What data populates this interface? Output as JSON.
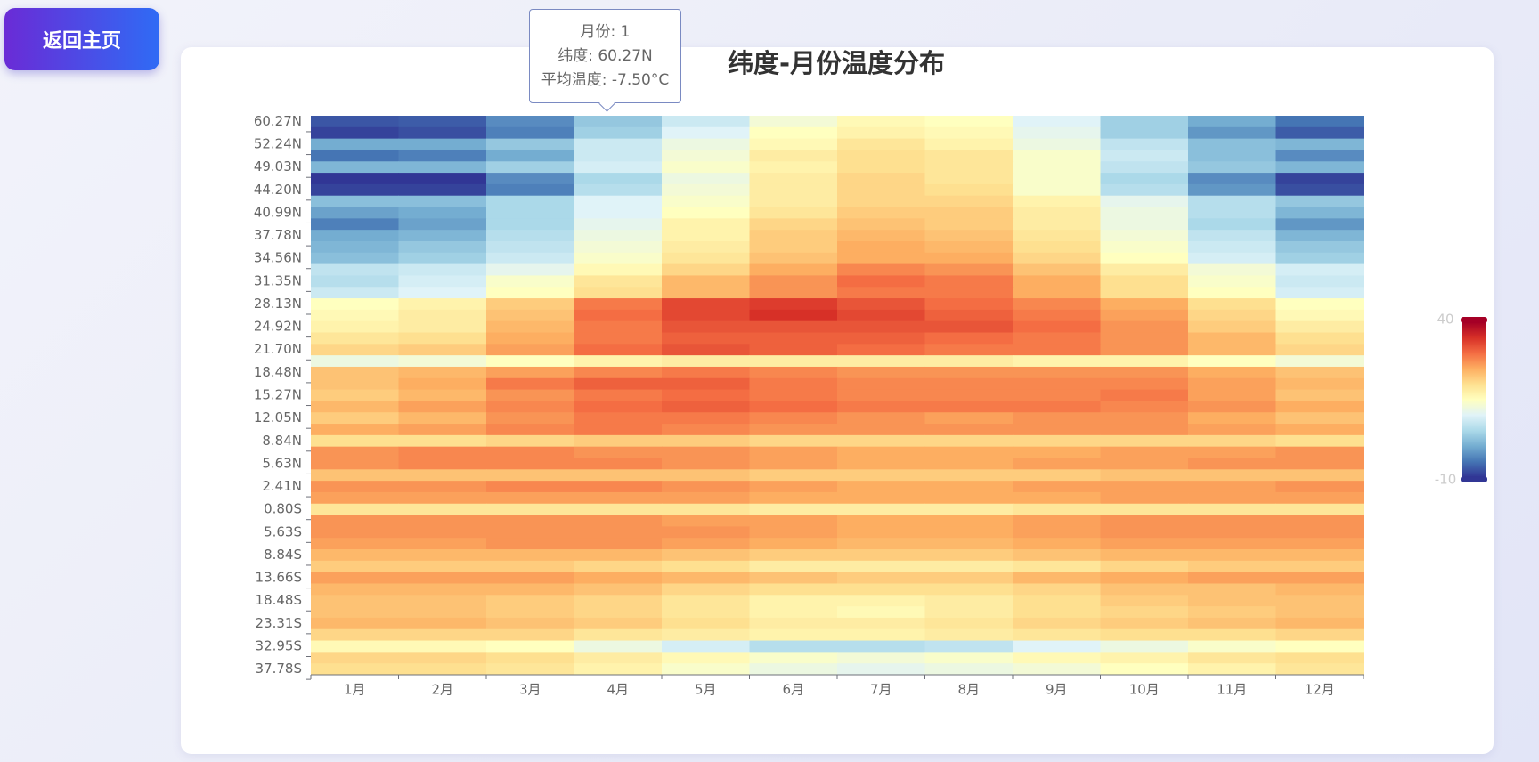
{
  "button": "返回主页",
  "chart_data": {
    "type": "heatmap",
    "title": "纬度-月份温度分布",
    "categories": [
      "1月",
      "2月",
      "3月",
      "4月",
      "5月",
      "6月",
      "7月",
      "8月",
      "9月",
      "10月",
      "11月",
      "12月"
    ],
    "y_categories": [
      "60.27N",
      null,
      "52.24N",
      null,
      "49.03N",
      null,
      "44.20N",
      null,
      "40.99N",
      null,
      "37.78N",
      null,
      "34.56N",
      null,
      "31.35N",
      null,
      "28.13N",
      null,
      "24.92N",
      null,
      "21.70N",
      null,
      "18.48N",
      null,
      "15.27N",
      null,
      "12.05N",
      null,
      "8.84N",
      null,
      "5.63N",
      null,
      "2.41N",
      null,
      "0.80S",
      null,
      "5.63S",
      null,
      "8.84S",
      null,
      "13.66S",
      null,
      "18.48S",
      null,
      "23.31S",
      null,
      "32.95S",
      null,
      "37.78S"
    ],
    "values": [
      [
        -7.5,
        -7,
        -3,
        3,
        8,
        13,
        16,
        15,
        10,
        4,
        0,
        -5
      ],
      [
        -9,
        -8,
        -4,
        4,
        10,
        15,
        17,
        16,
        11,
        4,
        -2,
        -7
      ],
      [
        0,
        0,
        3,
        8,
        12,
        16,
        19,
        17,
        12,
        7,
        2,
        1
      ],
      [
        -5,
        -4,
        0,
        8,
        13,
        18,
        20,
        19,
        14,
        8,
        2,
        -3
      ],
      [
        1,
        1,
        4,
        9,
        14,
        17,
        20,
        19,
        14,
        7,
        3,
        1
      ],
      [
        -10,
        -10,
        -3,
        5,
        12,
        18,
        21,
        19,
        14,
        5,
        -3,
        -9
      ],
      [
        -9,
        -9,
        -4,
        6,
        13,
        18,
        21,
        20,
        14,
        6,
        -2,
        -8
      ],
      [
        2,
        2,
        5,
        10,
        14,
        18,
        21,
        21,
        17,
        11,
        6,
        3
      ],
      [
        -1,
        0,
        5,
        10,
        15,
        19,
        22,
        22,
        18,
        12,
        6,
        1
      ],
      [
        -4,
        -1,
        5,
        11,
        17,
        21,
        23,
        22,
        18,
        12,
        5,
        -2
      ],
      [
        0,
        1,
        6,
        12,
        17,
        22,
        24,
        23,
        19,
        13,
        7,
        1
      ],
      [
        1,
        3,
        7,
        13,
        18,
        22,
        25,
        24,
        20,
        14,
        8,
        3
      ],
      [
        2,
        4,
        8,
        14,
        19,
        23,
        25,
        25,
        21,
        15,
        9,
        4
      ],
      [
        7,
        8,
        11,
        16,
        21,
        25,
        28,
        27,
        23,
        18,
        13,
        9
      ],
      [
        6,
        9,
        14,
        19,
        24,
        27,
        30,
        29,
        25,
        20,
        14,
        8
      ],
      [
        8,
        10,
        15,
        20,
        24,
        27,
        29,
        29,
        25,
        20,
        15,
        9
      ],
      [
        15,
        17,
        22,
        29,
        33,
        34,
        32,
        30,
        28,
        25,
        20,
        15
      ],
      [
        16,
        18,
        23,
        30,
        33,
        35,
        33,
        31,
        29,
        26,
        21,
        16
      ],
      [
        17,
        18,
        24,
        29,
        32,
        32,
        32,
        32,
        30,
        27,
        22,
        18
      ],
      [
        19,
        20,
        25,
        29,
        31,
        31,
        31,
        30,
        29,
        27,
        24,
        20
      ],
      [
        21,
        22,
        26,
        30,
        32,
        31,
        30,
        29,
        29,
        27,
        24,
        21
      ],
      [
        12,
        13,
        15,
        17,
        18,
        18,
        18,
        18,
        17,
        17,
        15,
        13
      ],
      [
        23,
        24,
        26,
        28,
        29,
        28,
        27,
        27,
        27,
        27,
        25,
        23
      ],
      [
        23,
        25,
        29,
        31,
        31,
        29,
        28,
        28,
        28,
        28,
        26,
        24
      ],
      [
        22,
        24,
        27,
        29,
        30,
        29,
        28,
        28,
        28,
        29,
        26,
        23
      ],
      [
        24,
        26,
        28,
        30,
        31,
        30,
        29,
        29,
        29,
        28,
        27,
        25
      ],
      [
        22,
        24,
        27,
        29,
        29,
        28,
        27,
        26,
        27,
        27,
        25,
        23
      ],
      [
        25,
        26,
        28,
        29,
        28,
        27,
        27,
        27,
        27,
        27,
        26,
        25
      ],
      [
        20,
        20,
        21,
        22,
        22,
        21,
        21,
        21,
        21,
        21,
        21,
        20
      ],
      [
        27,
        28,
        28,
        27,
        27,
        26,
        25,
        25,
        25,
        26,
        26,
        27
      ],
      [
        27,
        28,
        28,
        28,
        27,
        26,
        25,
        25,
        26,
        26,
        27,
        27
      ],
      [
        23,
        23,
        23,
        23,
        23,
        22,
        22,
        22,
        22,
        23,
        23,
        23
      ],
      [
        27,
        27,
        28,
        28,
        27,
        26,
        25,
        25,
        26,
        26,
        26,
        27
      ],
      [
        26,
        26,
        26,
        26,
        26,
        25,
        25,
        25,
        25,
        26,
        26,
        26
      ],
      [
        19,
        19,
        19,
        19,
        19,
        18,
        18,
        18,
        19,
        19,
        19,
        19
      ],
      [
        27,
        27,
        27,
        27,
        26,
        26,
        25,
        25,
        26,
        27,
        27,
        27
      ],
      [
        27,
        27,
        27,
        27,
        27,
        26,
        25,
        25,
        26,
        27,
        27,
        27
      ],
      [
        26,
        26,
        27,
        27,
        26,
        25,
        24,
        24,
        25,
        26,
        26,
        26
      ],
      [
        24,
        24,
        24,
        24,
        23,
        22,
        22,
        22,
        23,
        24,
        24,
        24
      ],
      [
        22,
        22,
        22,
        21,
        20,
        18,
        18,
        18,
        19,
        21,
        22,
        22
      ],
      [
        26,
        26,
        26,
        25,
        24,
        23,
        22,
        22,
        24,
        25,
        26,
        26
      ],
      [
        24,
        24,
        24,
        23,
        21,
        20,
        20,
        20,
        21,
        23,
        23,
        24
      ],
      [
        23,
        23,
        22,
        21,
        19,
        17,
        17,
        18,
        20,
        22,
        23,
        23
      ],
      [
        23,
        23,
        22,
        21,
        19,
        17,
        16,
        18,
        20,
        21,
        22,
        23
      ],
      [
        24,
        24,
        23,
        22,
        20,
        18,
        18,
        19,
        21,
        22,
        23,
        24
      ],
      [
        21,
        21,
        21,
        19,
        18,
        17,
        17,
        18,
        19,
        20,
        20,
        21
      ],
      [
        16,
        16,
        15,
        12,
        9,
        6,
        6,
        7,
        10,
        12,
        14,
        15
      ],
      [
        21,
        21,
        20,
        18,
        16,
        14,
        13,
        14,
        16,
        17,
        19,
        20
      ],
      [
        20,
        20,
        19,
        17,
        14,
        12,
        11,
        12,
        13,
        15,
        17,
        19
      ]
    ],
    "visual_map": {
      "min": -10,
      "max": 40,
      "colors": [
        "#313695",
        "#4575b4",
        "#74add1",
        "#abd9e9",
        "#e0f3f8",
        "#ffffbf",
        "#fee090",
        "#fdae61",
        "#f46d43",
        "#d73027",
        "#a50026"
      ]
    },
    "tooltip": [
      "月份: 1",
      "纬度: 60.27N",
      "平均温度: -7.50°C"
    ]
  }
}
